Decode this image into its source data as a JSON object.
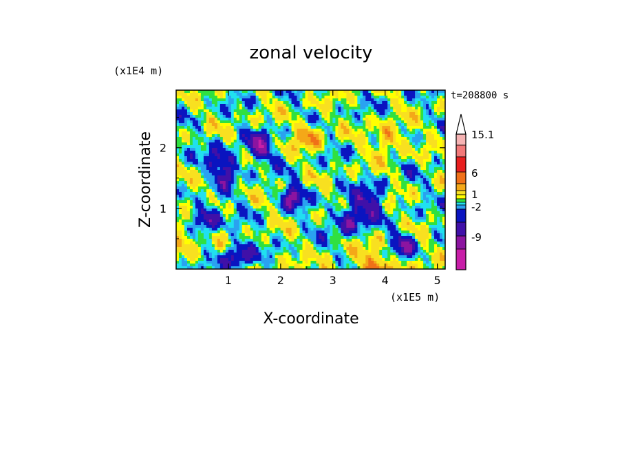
{
  "chart_data": {
    "type": "heatmap",
    "title": "zonal velocity",
    "xlabel": "X-coordinate",
    "ylabel": "Z-coordinate",
    "x_unit": "(x1E5 m)",
    "y_unit": "(x1E4 m)",
    "time_label": "t=208800 s",
    "xlim": [
      0,
      5.15
    ],
    "ylim": [
      0,
      2.95
    ],
    "x_ticks": [
      "1",
      "2",
      "3",
      "4",
      "5"
    ],
    "y_ticks": [
      "1",
      "2"
    ],
    "grid": false,
    "colorbar": {
      "labels": [
        "15.1",
        "6",
        "1",
        "-2",
        "-9"
      ],
      "colors": [
        "#f6b3b3",
        "#f27878",
        "#e81e1e",
        "#f07018",
        "#f4a818",
        "#f8e020",
        "#ffff00",
        "#30e040",
        "#20e0f0",
        "#2aa2f0",
        "#0a14c0",
        "#4010a8",
        "#8c14a0",
        "#c81ea8",
        "#f020b8"
      ],
      "extend": "max"
    }
  }
}
